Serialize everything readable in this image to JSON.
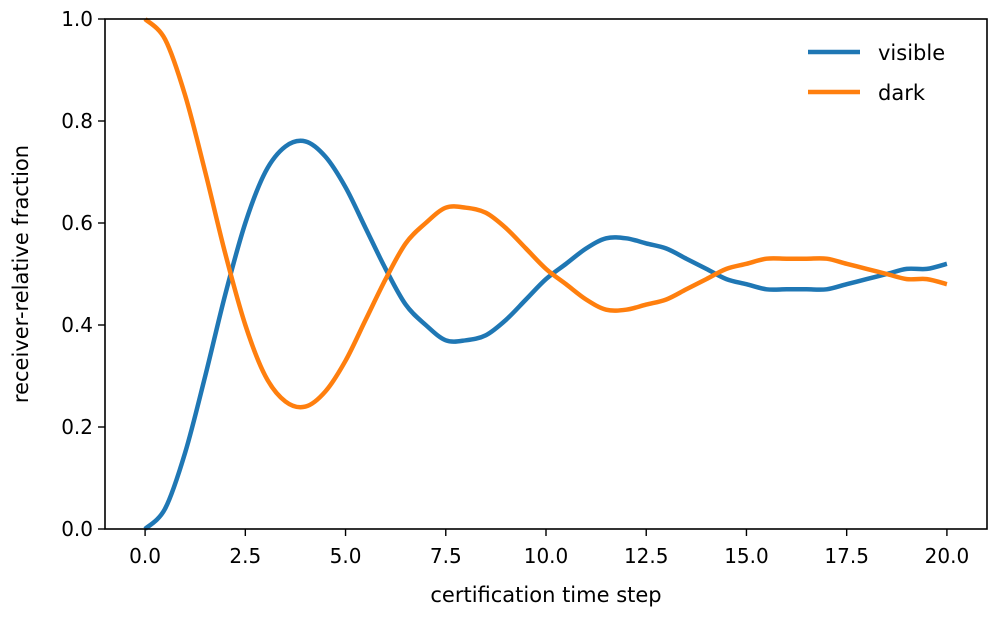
{
  "chart_data": {
    "type": "line",
    "xlabel": "certification time step",
    "ylabel": "receiver-relative fraction",
    "xlim": [
      -1.0,
      21.0
    ],
    "ylim": [
      0.0,
      1.0
    ],
    "x_ticks": [
      "0.0",
      "2.5",
      "5.0",
      "7.5",
      "10.0",
      "12.5",
      "15.0",
      "17.5",
      "20.0"
    ],
    "y_ticks": [
      "0.0",
      "0.2",
      "0.4",
      "0.6",
      "0.8",
      "1.0"
    ],
    "legend_position": "top-right",
    "grid": false,
    "x": [
      0.0,
      0.5,
      1.0,
      1.5,
      2.0,
      2.5,
      3.0,
      3.5,
      4.0,
      4.5,
      5.0,
      5.5,
      6.0,
      6.5,
      7.0,
      7.5,
      8.0,
      8.5,
      9.0,
      9.5,
      10.0,
      10.5,
      11.0,
      11.5,
      12.0,
      12.5,
      13.0,
      13.5,
      14.0,
      14.5,
      15.0,
      15.5,
      16.0,
      16.5,
      17.0,
      17.5,
      18.0,
      18.5,
      19.0,
      19.5,
      20.0
    ],
    "series": [
      {
        "name": "visible",
        "color": "#1f77b4",
        "values": [
          0.0,
          0.04,
          0.15,
          0.3,
          0.46,
          0.6,
          0.7,
          0.75,
          0.76,
          0.73,
          0.67,
          0.59,
          0.51,
          0.44,
          0.4,
          0.37,
          0.37,
          0.38,
          0.41,
          0.45,
          0.49,
          0.52,
          0.55,
          0.57,
          0.57,
          0.56,
          0.55,
          0.53,
          0.51,
          0.49,
          0.48,
          0.47,
          0.47,
          0.47,
          0.47,
          0.48,
          0.49,
          0.5,
          0.51,
          0.51,
          0.52
        ]
      },
      {
        "name": "dark",
        "color": "#ff7f0e",
        "values": [
          1.0,
          0.96,
          0.85,
          0.7,
          0.54,
          0.4,
          0.3,
          0.25,
          0.24,
          0.27,
          0.33,
          0.41,
          0.49,
          0.56,
          0.6,
          0.63,
          0.63,
          0.62,
          0.59,
          0.55,
          0.51,
          0.48,
          0.45,
          0.43,
          0.43,
          0.44,
          0.45,
          0.47,
          0.49,
          0.51,
          0.52,
          0.53,
          0.53,
          0.53,
          0.53,
          0.52,
          0.51,
          0.5,
          0.49,
          0.49,
          0.48
        ]
      }
    ]
  }
}
